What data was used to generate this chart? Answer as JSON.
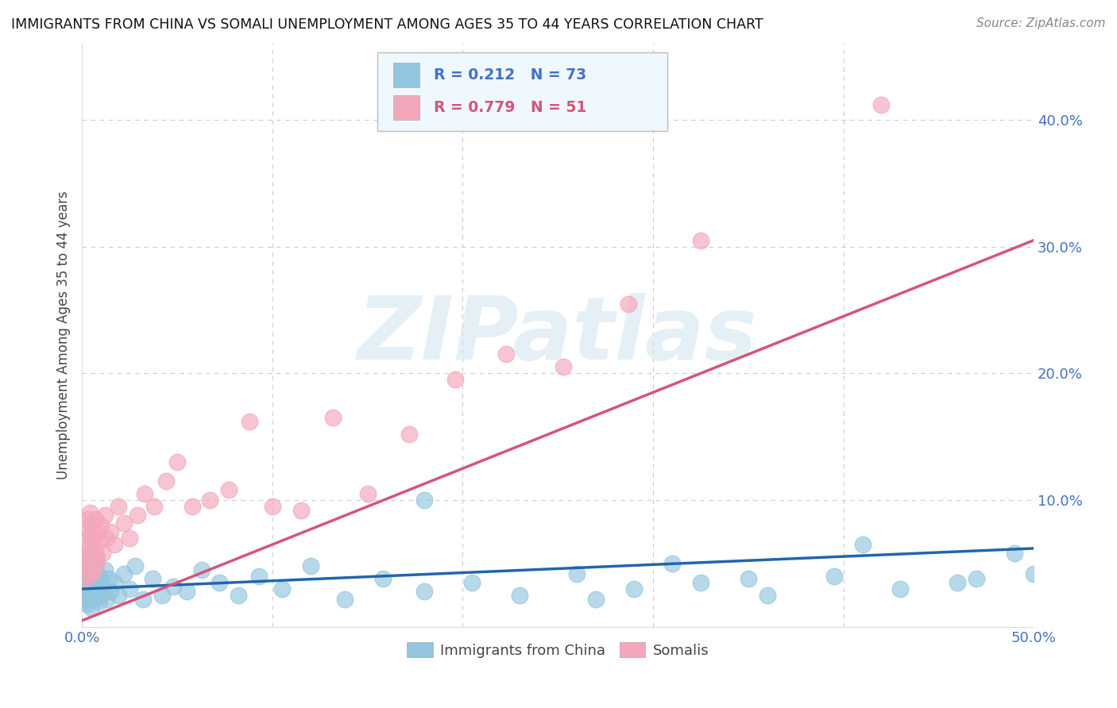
{
  "title": "IMMIGRANTS FROM CHINA VS SOMALI UNEMPLOYMENT AMONG AGES 35 TO 44 YEARS CORRELATION CHART",
  "source": "Source: ZipAtlas.com",
  "ylabel": "Unemployment Among Ages 35 to 44 years",
  "xlim": [
    0.0,
    0.5
  ],
  "ylim": [
    0.0,
    0.46
  ],
  "xticks": [
    0.0,
    0.1,
    0.2,
    0.3,
    0.4,
    0.5
  ],
  "yticks": [
    0.0,
    0.1,
    0.2,
    0.3,
    0.4
  ],
  "ytick_labels": [
    "",
    "10.0%",
    "20.0%",
    "30.0%",
    "40.0%"
  ],
  "xtick_labels": [
    "0.0%",
    "",
    "",
    "",
    "",
    "50.0%"
  ],
  "china_R": 0.212,
  "china_N": 73,
  "somali_R": 0.779,
  "somali_N": 51,
  "china_color": "#92c5de",
  "somali_color": "#f4a6ba",
  "china_line_color": "#2166ac",
  "somali_line_color": "#d6547a",
  "watermark": "ZIPatlas",
  "watermark_color_zip": "#c8d8e8",
  "watermark_color_atlas": "#a8c8e8",
  "china_x": [
    0.001,
    0.001,
    0.001,
    0.002,
    0.002,
    0.002,
    0.002,
    0.003,
    0.003,
    0.003,
    0.003,
    0.003,
    0.004,
    0.004,
    0.004,
    0.004,
    0.005,
    0.005,
    0.005,
    0.005,
    0.006,
    0.006,
    0.006,
    0.007,
    0.007,
    0.007,
    0.008,
    0.008,
    0.009,
    0.009,
    0.01,
    0.01,
    0.011,
    0.012,
    0.013,
    0.014,
    0.015,
    0.017,
    0.019,
    0.022,
    0.025,
    0.028,
    0.032,
    0.037,
    0.042,
    0.048,
    0.055,
    0.063,
    0.072,
    0.082,
    0.093,
    0.105,
    0.12,
    0.138,
    0.158,
    0.18,
    0.205,
    0.23,
    0.26,
    0.29,
    0.325,
    0.36,
    0.395,
    0.43,
    0.46,
    0.49,
    0.5,
    0.35,
    0.27,
    0.41,
    0.18,
    0.31,
    0.47
  ],
  "china_y": [
    0.03,
    0.045,
    0.025,
    0.038,
    0.02,
    0.055,
    0.035,
    0.028,
    0.042,
    0.018,
    0.032,
    0.05,
    0.022,
    0.038,
    0.048,
    0.025,
    0.032,
    0.042,
    0.015,
    0.028,
    0.035,
    0.05,
    0.022,
    0.038,
    0.025,
    0.045,
    0.03,
    0.055,
    0.02,
    0.04,
    0.025,
    0.035,
    0.03,
    0.045,
    0.022,
    0.038,
    0.028,
    0.035,
    0.025,
    0.042,
    0.03,
    0.048,
    0.022,
    0.038,
    0.025,
    0.032,
    0.028,
    0.045,
    0.035,
    0.025,
    0.04,
    0.03,
    0.048,
    0.022,
    0.038,
    0.028,
    0.035,
    0.025,
    0.042,
    0.03,
    0.035,
    0.025,
    0.04,
    0.03,
    0.035,
    0.058,
    0.042,
    0.038,
    0.022,
    0.065,
    0.1,
    0.05,
    0.038
  ],
  "somali_x": [
    0.001,
    0.001,
    0.002,
    0.002,
    0.002,
    0.003,
    0.003,
    0.003,
    0.004,
    0.004,
    0.004,
    0.005,
    0.005,
    0.005,
    0.006,
    0.006,
    0.006,
    0.007,
    0.007,
    0.008,
    0.008,
    0.009,
    0.01,
    0.011,
    0.012,
    0.013,
    0.015,
    0.017,
    0.019,
    0.022,
    0.025,
    0.029,
    0.033,
    0.038,
    0.044,
    0.05,
    0.058,
    0.067,
    0.077,
    0.088,
    0.1,
    0.115,
    0.132,
    0.15,
    0.172,
    0.196,
    0.223,
    0.253,
    0.287,
    0.325,
    0.42
  ],
  "somali_y": [
    0.045,
    0.068,
    0.055,
    0.078,
    0.038,
    0.062,
    0.085,
    0.048,
    0.072,
    0.055,
    0.09,
    0.042,
    0.068,
    0.08,
    0.055,
    0.072,
    0.045,
    0.085,
    0.06,
    0.075,
    0.05,
    0.068,
    0.08,
    0.058,
    0.088,
    0.07,
    0.075,
    0.065,
    0.095,
    0.082,
    0.07,
    0.088,
    0.105,
    0.095,
    0.115,
    0.13,
    0.095,
    0.1,
    0.108,
    0.162,
    0.095,
    0.092,
    0.165,
    0.105,
    0.152,
    0.195,
    0.215,
    0.205,
    0.255,
    0.305,
    0.412
  ],
  "china_trend_x": [
    0.0,
    0.5
  ],
  "china_trend_y": [
    0.03,
    0.062
  ],
  "somali_trend_x": [
    0.0,
    0.5
  ],
  "somali_trend_y": [
    0.005,
    0.305
  ]
}
